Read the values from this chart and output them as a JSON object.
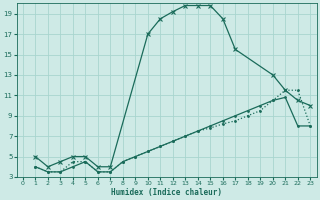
{
  "xlabel": "Humidex (Indice chaleur)",
  "bg_color": "#ceeae6",
  "grid_color": "#a8d5cf",
  "line_color": "#1a6b5a",
  "xlim": [
    -0.5,
    23.5
  ],
  "ylim": [
    3,
    20
  ],
  "xtick_labels": [
    "0",
    "1",
    "2",
    "3",
    "4",
    "5",
    "6",
    "7",
    "8",
    "9",
    "10",
    "11",
    "12",
    "13",
    "14",
    "15",
    "16",
    "17",
    "18",
    "19",
    "20",
    "21",
    "22",
    "23"
  ],
  "xticks": [
    0,
    1,
    2,
    3,
    4,
    5,
    6,
    7,
    8,
    9,
    10,
    11,
    12,
    13,
    14,
    15,
    16,
    17,
    18,
    19,
    20,
    21,
    22,
    23
  ],
  "yticks": [
    3,
    5,
    7,
    9,
    11,
    13,
    15,
    17,
    19
  ],
  "curve1_x": [
    1,
    2,
    3,
    4,
    5,
    6,
    7,
    10,
    11,
    12,
    13,
    14,
    15,
    16,
    17,
    20,
    21,
    22,
    23
  ],
  "curve1_y": [
    5,
    4,
    4.5,
    5,
    5,
    4,
    4,
    17,
    18.5,
    19.2,
    19.8,
    19.8,
    19.8,
    18.5,
    15.5,
    13,
    11.5,
    10.5,
    10
  ],
  "curve2_x": [
    1,
    2,
    3,
    4,
    5,
    6,
    7,
    8,
    9,
    10,
    11,
    12,
    13,
    14,
    15,
    16,
    17,
    18,
    19,
    20,
    21,
    22,
    23
  ],
  "curve2_y": [
    4,
    3.5,
    3.5,
    4.5,
    4.5,
    3.5,
    3.5,
    4.5,
    5,
    5.5,
    6,
    6.5,
    7,
    7.5,
    7.8,
    8.2,
    8.5,
    9,
    9.5,
    10.5,
    11.5,
    11.5,
    8
  ],
  "curve3_x": [
    1,
    2,
    3,
    4,
    5,
    6,
    7,
    8,
    9,
    10,
    11,
    12,
    13,
    14,
    15,
    16,
    17,
    18,
    19,
    20,
    21,
    22,
    23
  ],
  "curve3_y": [
    4,
    3.5,
    3.5,
    4,
    4.5,
    3.5,
    3.5,
    4.5,
    5,
    5.5,
    6,
    6.5,
    7,
    7.5,
    8,
    8.5,
    9,
    9.5,
    10,
    10.5,
    10.8,
    8,
    8
  ]
}
